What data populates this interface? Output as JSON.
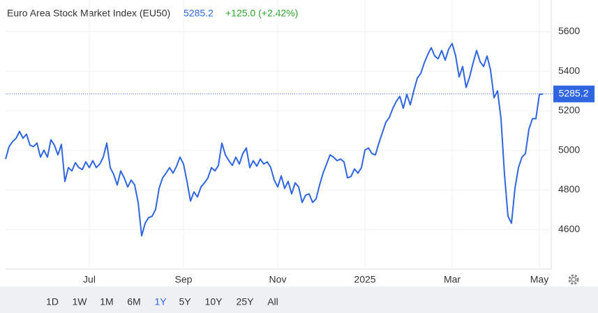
{
  "chart_data": {
    "type": "line",
    "title": "Euro Area Stock Market Index (EU50)",
    "price": 5285.2,
    "change": "+125.0 (+2.42%)",
    "categories": [
      null,
      null,
      null,
      null,
      null,
      null,
      null,
      null,
      null,
      null,
      null,
      null,
      null,
      null,
      null,
      null,
      null,
      null,
      null,
      null,
      null,
      null,
      null,
      null,
      "Jul",
      null,
      null,
      null,
      null,
      null,
      null,
      null,
      null,
      null,
      null,
      null,
      null,
      null,
      null,
      null,
      null,
      null,
      null,
      null,
      null,
      null,
      null,
      null,
      null,
      null,
      null,
      "Sep",
      null,
      null,
      null,
      null,
      null,
      null,
      null,
      null,
      null,
      null,
      null,
      null,
      null,
      null,
      null,
      null,
      null,
      null,
      null,
      null,
      null,
      null,
      null,
      null,
      null,
      null,
      "Nov",
      null,
      null,
      null,
      null,
      null,
      null,
      null,
      null,
      null,
      null,
      null,
      null,
      null,
      null,
      null,
      null,
      null,
      null,
      null,
      null,
      null,
      null,
      null,
      null,
      "2025",
      null,
      null,
      null,
      null,
      null,
      null,
      null,
      null,
      null,
      null,
      null,
      null,
      null,
      null,
      null,
      null,
      null,
      null,
      null,
      null,
      null,
      null,
      null,
      null,
      "Mar",
      null,
      null,
      null,
      null,
      null,
      null,
      null,
      null,
      null,
      null,
      null,
      null,
      null,
      null,
      null,
      null,
      null,
      null,
      null,
      null,
      null,
      null,
      null,
      null,
      "May",
      null
    ],
    "values": [
      4956,
      5019,
      5044,
      5061,
      5096,
      5061,
      5082,
      5026,
      5019,
      5037,
      4966,
      5001,
      4966,
      5054,
      5026,
      4977,
      5030,
      4843,
      4913,
      4896,
      4938,
      4913,
      4903,
      4942,
      4913,
      4948,
      4913,
      4931,
      4966,
      5037,
      4913,
      4878,
      4825,
      4896,
      4861,
      4815,
      4850,
      4825,
      4737,
      4568,
      4632,
      4660,
      4667,
      4702,
      4808,
      4861,
      4885,
      4913,
      4885,
      4920,
      4966,
      4931,
      4843,
      4744,
      4790,
      4765,
      4815,
      4836,
      4861,
      4913,
      4896,
      4924,
      5037,
      4977,
      4948,
      4924,
      4966,
      4931,
      4984,
      5012,
      4913,
      4948,
      4920,
      4956,
      4931,
      4942,
      4913,
      4850,
      4815,
      4871,
      4808,
      4843,
      4780,
      4836,
      4815,
      4737,
      4773,
      4780,
      4737,
      4755,
      4825,
      4885,
      4931,
      4977,
      4966,
      4948,
      4956,
      4942,
      4861,
      4868,
      4906,
      4885,
      4913,
      5001,
      5012,
      4984,
      4977,
      5037,
      5090,
      5142,
      5167,
      5213,
      5248,
      5273,
      5213,
      5283,
      5230,
      5301,
      5365,
      5389,
      5442,
      5484,
      5519,
      5477,
      5463,
      5505,
      5456,
      5512,
      5540,
      5477,
      5371,
      5424,
      5318,
      5371,
      5442,
      5505,
      5449,
      5424,
      5477,
      5406,
      5266,
      5301,
      5160,
      4878,
      4667,
      4632,
      4808,
      4913,
      4966,
      4984,
      5107,
      5160,
      5160,
      5283,
      5285.2
    ],
    "color": "#2f66e0",
    "ylim": [
      4400,
      5760
    ],
    "yticks": [
      4600,
      4800,
      5000,
      5200,
      5400,
      5600
    ],
    "grid": true,
    "range_buttons": [
      "1D",
      "1W",
      "1M",
      "6M",
      "1Y",
      "5Y",
      "10Y",
      "25Y",
      "All"
    ],
    "selected_range": "1Y"
  }
}
